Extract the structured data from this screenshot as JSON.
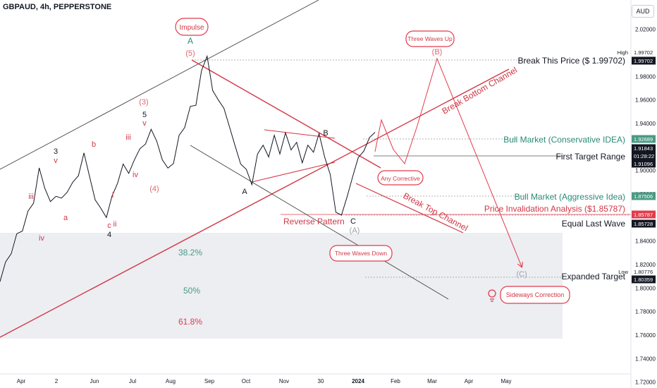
{
  "header": {
    "title": "GBPAUD, 4h, PEPPERSTONE",
    "currency": "AUD"
  },
  "chart_data": {
    "type": "line",
    "series": [
      {
        "values": [
          1.8055,
          1.8222,
          1.8292,
          1.8462,
          1.8485,
          1.8655,
          1.8722,
          1.9022,
          1.885,
          1.8735,
          1.878,
          1.8765,
          1.8815,
          1.89,
          1.8955,
          1.915,
          1.895,
          1.875,
          1.868,
          1.86,
          1.878,
          1.889,
          1.9055,
          1.8975,
          1.909,
          1.9185,
          1.9225,
          1.935,
          1.925,
          1.909,
          1.902,
          1.906,
          1.93,
          1.9365,
          1.9545,
          1.9555,
          1.985,
          1.9972,
          1.968,
          1.96,
          1.953,
          1.937,
          1.921,
          1.9055,
          1.901,
          1.888,
          1.914,
          1.9215,
          1.9115,
          1.93,
          1.914,
          1.932,
          1.9175,
          1.924,
          1.9065,
          1.9215,
          1.9155,
          1.9315,
          1.9115,
          1.8965,
          1.8645,
          1.862,
          1.8775,
          1.8945,
          1.911,
          1.9165,
          1.928,
          1.9325
        ]
      }
    ],
    "ylim": [
      1.715,
      2.045
    ],
    "y_ticks": [
      "2.02000",
      "1.98000",
      "1.96000",
      "1.94000",
      "1.90000",
      "1.88000",
      "1.84000",
      "1.82000",
      "1.80000",
      "1.78000",
      "1.76000",
      "1.74000",
      "1.72000"
    ],
    "x_ticks": [
      "Apr",
      "2",
      "Jun",
      "Jul",
      "Aug",
      "Sep",
      "Oct",
      "Nov",
      "30",
      "2024",
      "Feb",
      "Mar",
      "Apr",
      "May"
    ],
    "price_tags": [
      {
        "label": "High",
        "value": "1.99702"
      },
      {
        "value": "1.99702"
      },
      {
        "value": "1.92689"
      },
      {
        "value": "1.91843"
      },
      {
        "value": "01:28:22"
      },
      {
        "value": "1.91096"
      },
      {
        "value": "1.87506"
      },
      {
        "value": "1.85787"
      },
      {
        "value": "1.85728"
      },
      {
        "label": "Low",
        "value": "1.80776"
      },
      {
        "value": "1.80359"
      }
    ],
    "annotations": {
      "break_price": "Break This Price ($ 1.99702)",
      "bull_conservative": "Bull Market (Conservative IDEA)",
      "first_target": "First Target Range",
      "bull_aggressive": "Bull Market (Aggressive Idea)",
      "invalidation": "Price Invalidation Analysis ($1.85787)",
      "equal_last_wave": "Equal Last Wave",
      "expanded_target": "Expanded Target",
      "break_bottom": "Break Bottom Channel",
      "break_top": "Break Top Channel",
      "reverse_pattern": "Reverse Pattern",
      "three_waves_up": "Three Waves Up",
      "three_waves_down": "Three Waves Down",
      "any_corrective": "Any Corrective",
      "sideways_correction": "Sideways Correction",
      "impulse": "Impulse"
    },
    "fib_levels": [
      "38.2%",
      "50%",
      "61.8%"
    ],
    "wave_labels": [
      "A",
      "(5)",
      "(3)",
      "(4)",
      "5",
      "3",
      "4",
      "B",
      "A",
      "C",
      "(A)",
      "(B)",
      "(C)",
      "b",
      "c",
      "a",
      "iii",
      "iv",
      "v",
      "i",
      "ii"
    ]
  }
}
